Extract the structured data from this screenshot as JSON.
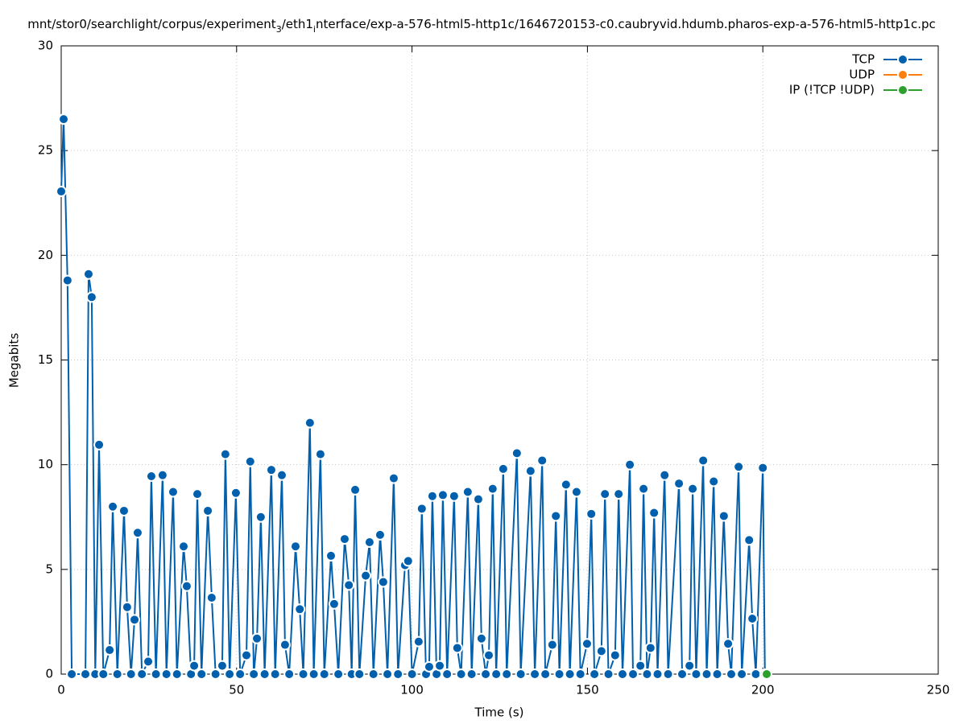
{
  "chart_data": {
    "type": "line",
    "title": [
      "mnt/stor0/searchlight/corpus/experiment",
      "3",
      "/eth1",
      "i",
      "nterface/exp-a-576-html5-http1c/1646720153-c0.caubryvid.hdumb.pharos-exp-a-576-html5-http1c.pc"
    ],
    "x_label": "Time (s)",
    "y_label": "Megabits",
    "xlim": [
      0,
      250
    ],
    "xticks": [
      0,
      50,
      100,
      150,
      200,
      250
    ],
    "ylim": [
      0,
      30
    ],
    "yticks": [
      0,
      5,
      10,
      15,
      20,
      25,
      30
    ],
    "grid": true,
    "legend": "top-right",
    "series": [
      {
        "name": "TCP",
        "color": "#0060ad",
        "x": [
          0,
          0.7,
          1.8,
          3.0,
          6.9,
          7.8,
          8.7,
          9.7,
          10.8,
          12.0,
          13.8,
          14.7,
          16.0,
          17.9,
          18.8,
          19.9,
          20.9,
          21.8,
          23.0,
          24.8,
          25.7,
          27.0,
          28.9,
          30.0,
          31.9,
          33.0,
          34.9,
          35.8,
          37.0,
          37.9,
          38.8,
          40.0,
          41.8,
          42.9,
          44.0,
          45.9,
          46.8,
          48.0,
          49.8,
          51.0,
          52.8,
          53.9,
          54.9,
          55.8,
          56.9,
          58.0,
          59.9,
          61.0,
          62.9,
          63.8,
          65.0,
          66.8,
          68.0,
          69.0,
          70.9,
          72.0,
          73.9,
          75.0,
          76.9,
          77.8,
          79.0,
          80.8,
          82.0,
          82.8,
          83.8,
          85.0,
          86.8,
          87.9,
          89.0,
          90.9,
          91.8,
          93.0,
          94.8,
          96.0,
          98.0,
          98.9,
          100.0,
          101.9,
          102.8,
          104.0,
          104.9,
          105.8,
          107.0,
          107.9,
          108.8,
          110.0,
          112.0,
          112.9,
          114.0,
          115.9,
          117.0,
          118.9,
          119.8,
          121.0,
          121.9,
          123.0,
          124.0,
          126.0,
          127.0,
          129.9,
          131.0,
          133.8,
          135.0,
          137.1,
          138.0,
          140.0,
          141.0,
          142.0,
          143.9,
          145.0,
          146.9,
          148.0,
          149.9,
          151.1,
          152.0,
          154.0,
          155.0,
          156.0,
          157.9,
          158.9,
          160.0,
          162.1,
          163.0,
          165.1,
          166.0,
          167.0,
          168.0,
          169.0,
          170.0,
          172.0,
          173.0,
          176.1,
          177.0,
          179.1,
          180.0,
          181.0,
          183.0,
          184.0,
          186.0,
          187.0,
          188.9,
          190.1,
          191.0,
          193.1,
          194.0,
          196.1,
          197.0,
          198.0,
          200.0,
          200.6
        ],
        "values": [
          23.05,
          26.5,
          18.8,
          0,
          0,
          19.1,
          18.0,
          0,
          10.95,
          0,
          1.15,
          8.0,
          0,
          7.8,
          3.2,
          0,
          2.6,
          6.75,
          0,
          0.6,
          9.45,
          0,
          9.5,
          0,
          8.7,
          0,
          6.1,
          4.2,
          0,
          0.4,
          8.6,
          0,
          7.8,
          3.65,
          0,
          0.4,
          10.5,
          0,
          8.65,
          0,
          0.9,
          10.15,
          0,
          1.7,
          7.5,
          0,
          9.75,
          0,
          9.5,
          1.4,
          0,
          6.1,
          3.1,
          0,
          12.0,
          0,
          10.5,
          0,
          5.65,
          3.35,
          0,
          6.45,
          4.25,
          0,
          8.8,
          0,
          4.7,
          6.3,
          0,
          6.65,
          4.4,
          0,
          9.35,
          0,
          5.2,
          5.4,
          0,
          1.55,
          7.9,
          0,
          0.35,
          8.5,
          0,
          0.4,
          8.55,
          0,
          8.5,
          1.25,
          0,
          8.7,
          0,
          8.35,
          1.7,
          0,
          0.9,
          8.85,
          0,
          9.8,
          0,
          10.55,
          0,
          9.7,
          0,
          10.2,
          0,
          1.4,
          7.55,
          0,
          9.05,
          0,
          8.7,
          0,
          1.45,
          7.65,
          0,
          1.1,
          8.6,
          0,
          0.9,
          8.6,
          0,
          10.0,
          0,
          0.4,
          8.85,
          0,
          1.25,
          7.7,
          0,
          9.5,
          0,
          9.1,
          0,
          0.4,
          8.85,
          0,
          10.2,
          0,
          9.2,
          0,
          7.55,
          1.45,
          0,
          9.9,
          0,
          6.4,
          2.65,
          0,
          9.85,
          0
        ]
      },
      {
        "name": "UDP",
        "color": "#ff7f0e",
        "x": [],
        "values": []
      },
      {
        "name": "IP (!TCP  !UDP)",
        "color": "#2ca02c",
        "x": [
          201.1
        ],
        "values": [
          0
        ]
      }
    ]
  }
}
